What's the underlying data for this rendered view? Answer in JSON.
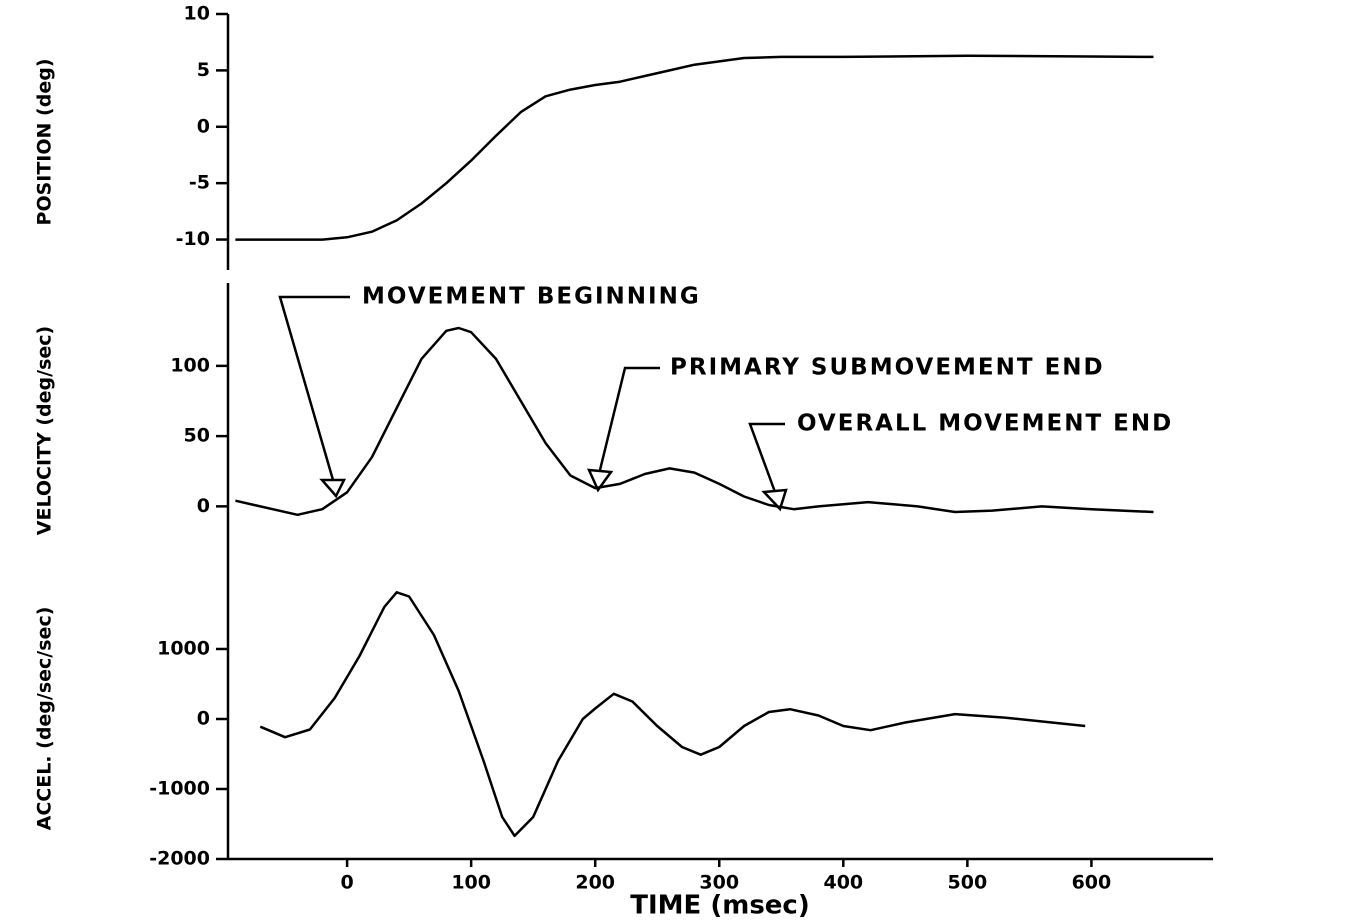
{
  "chart_data": [
    {
      "type": "line",
      "ylabel": "POSITION (deg)",
      "xlim": [
        -96,
        698
      ],
      "ylim": [
        -12.7,
        10
      ],
      "yticks": [
        10,
        5,
        0,
        -5,
        -10
      ],
      "color": "#000000",
      "x": [
        -90,
        -50,
        -20,
        0,
        20,
        40,
        60,
        80,
        100,
        120,
        140,
        160,
        180,
        200,
        220,
        240,
        260,
        280,
        300,
        320,
        350,
        400,
        500,
        650
      ],
      "values": [
        -10,
        -10,
        -10,
        -9.8,
        -9.3,
        -8.3,
        -6.8,
        -5,
        -3,
        -0.8,
        1.3,
        2.7,
        3.3,
        3.7,
        4,
        4.5,
        5,
        5.5,
        5.8,
        6.1,
        6.2,
        6.2,
        6.3,
        6.2
      ]
    },
    {
      "type": "line",
      "ylabel": "VELOCITY (deg/sec)",
      "xlim": [
        -96,
        698
      ],
      "ylim": [
        -51,
        159
      ],
      "yticks": [
        100,
        50,
        0
      ],
      "color": "#000000",
      "annotations": [
        "MOVEMENT BEGINNING",
        "PRIMARY SUBMOVEMENT END",
        "OVERALL MOVEMENT END"
      ],
      "x": [
        -90,
        -60,
        -40,
        -20,
        0,
        20,
        40,
        60,
        80,
        90,
        100,
        120,
        140,
        160,
        180,
        200,
        220,
        240,
        260,
        280,
        300,
        320,
        340,
        360,
        380,
        420,
        460,
        490,
        520,
        560,
        600,
        650
      ],
      "values": [
        4,
        -2,
        -6,
        -2,
        10,
        35,
        70,
        105,
        125,
        127,
        124,
        105,
        75,
        45,
        22,
        13,
        16,
        23,
        27,
        24,
        16,
        7,
        1,
        -2,
        0,
        3,
        0,
        -4,
        -3,
        0,
        -2,
        -4
      ]
    },
    {
      "type": "line",
      "ylabel": "ACCEL. (deg/sec/sec)",
      "xlabel": "TIME (msec)",
      "xlim": [
        -96,
        698
      ],
      "ylim": [
        -2000,
        2014
      ],
      "yticks": [
        1000,
        0,
        -1000,
        -2000
      ],
      "xticks": [
        0,
        100,
        200,
        300,
        400,
        500,
        600
      ],
      "color": "#000000",
      "x": [
        -70,
        -50,
        -30,
        -10,
        10,
        30,
        40,
        50,
        70,
        90,
        110,
        125,
        135,
        150,
        170,
        190,
        200,
        215,
        230,
        250,
        270,
        285,
        300,
        320,
        340,
        357,
        380,
        400,
        422,
        450,
        490,
        530,
        595
      ],
      "values": [
        -110,
        -260,
        -150,
        300,
        900,
        1600,
        1810,
        1750,
        1200,
        400,
        -600,
        -1400,
        -1670,
        -1400,
        -600,
        0,
        150,
        360,
        250,
        -100,
        -400,
        -510,
        -400,
        -100,
        100,
        140,
        50,
        -100,
        -160,
        -50,
        70,
        20,
        -100
      ]
    }
  ]
}
